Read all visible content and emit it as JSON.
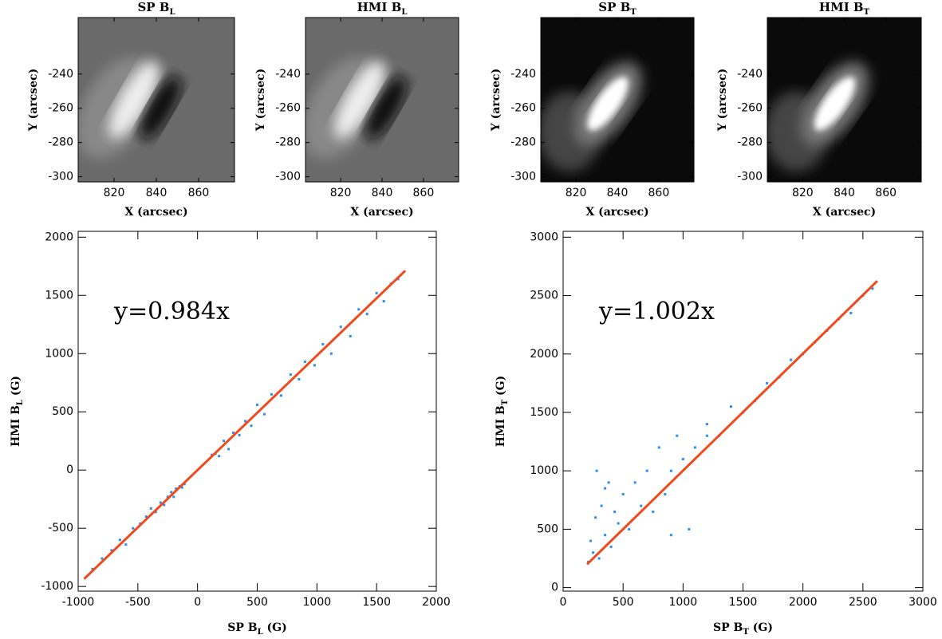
{
  "chart_data": [
    {
      "type": "image",
      "title": "SP B",
      "title_sub": "L",
      "xlabel": "X (arcsec)",
      "ylabel": "Y (arcsec)",
      "xlim": [
        803,
        877
      ],
      "ylim": [
        -303,
        -207
      ],
      "xticks": [
        820,
        840,
        860
      ],
      "yticks": [
        -240,
        -260,
        -280,
        -300
      ]
    },
    {
      "type": "image",
      "title": "HMI B",
      "title_sub": "L",
      "xlabel": "X (arcsec)",
      "ylabel": "Y (arcsec)",
      "xlim": [
        803,
        877
      ],
      "ylim": [
        -303,
        -207
      ],
      "xticks": [
        820,
        840,
        860
      ],
      "yticks": [
        -240,
        -260,
        -280,
        -300
      ]
    },
    {
      "type": "image",
      "title": "SP B",
      "title_sub": "T",
      "xlabel": "X (arcsec)",
      "ylabel": "Y (arcsec)",
      "xlim": [
        803,
        877
      ],
      "ylim": [
        -303,
        -207
      ],
      "xticks": [
        820,
        840,
        860
      ],
      "yticks": [
        -240,
        -260,
        -280,
        -300
      ]
    },
    {
      "type": "image",
      "title": "HMI B",
      "title_sub": "T",
      "xlabel": "X (arcsec)",
      "ylabel": "Y (arcsec)",
      "xlim": [
        803,
        877
      ],
      "ylim": [
        -303,
        -207
      ],
      "xticks": [
        820,
        840,
        860
      ],
      "yticks": [
        -240,
        -260,
        -280,
        -300
      ]
    },
    {
      "type": "scatter",
      "xlabel": "SP B",
      "xlabel_sub": "L",
      "xlabel_unit": " (G)",
      "ylabel": "HMI B",
      "ylabel_sub": "L",
      "ylabel_unit": " (G)",
      "xlim": [
        -1000,
        2000
      ],
      "ylim": [
        -1040,
        2050
      ],
      "xticks": [
        -1000,
        -500,
        0,
        500,
        1000,
        1500,
        2000
      ],
      "yticks": [
        -1000,
        -500,
        0,
        500,
        1000,
        1500,
        2000
      ],
      "annotation": "y=0.984x",
      "points": {
        "color": "#2b8cf2",
        "x": [
          -880,
          -800,
          -720,
          -650,
          -600,
          -540,
          -480,
          -430,
          -390,
          -350,
          -310,
          -280,
          -250,
          -220,
          -200,
          -180,
          -150,
          -130,
          -110,
          120,
          150,
          180,
          220,
          260,
          300,
          350,
          400,
          450,
          500,
          560,
          620,
          700,
          780,
          850,
          900,
          980,
          1050,
          1120,
          1200,
          1280,
          1350,
          1420,
          1500,
          1560,
          1620,
          1680
        ],
        "y": [
          -850,
          -760,
          -690,
          -600,
          -640,
          -500,
          -460,
          -400,
          -330,
          -360,
          -280,
          -300,
          -230,
          -190,
          -230,
          -160,
          -140,
          -150,
          -120,
          130,
          140,
          120,
          250,
          180,
          320,
          300,
          420,
          380,
          560,
          480,
          650,
          640,
          820,
          780,
          930,
          900,
          1080,
          1000,
          1230,
          1150,
          1380,
          1340,
          1520,
          1450,
          1600,
          1640
        ]
      },
      "fit": {
        "color": "#f04a1c",
        "x": [
          -950,
          1740
        ],
        "y": [
          -935,
          1712
        ]
      }
    },
    {
      "type": "scatter",
      "xlabel": "SP B",
      "xlabel_sub": "T",
      "xlabel_unit": " (G)",
      "ylabel": "HMI B",
      "ylabel_sub": "T",
      "ylabel_unit": " (G)",
      "xlim": [
        0,
        3000
      ],
      "ylim": [
        -30,
        3050
      ],
      "xticks": [
        0,
        500,
        1000,
        1500,
        2000,
        2500,
        3000
      ],
      "yticks": [
        0,
        500,
        1000,
        1500,
        2000,
        2500,
        3000
      ],
      "annotation": "y=1.002x",
      "points": {
        "color": "#2b8cf2",
        "x": [
          210,
          230,
          250,
          270,
          300,
          320,
          350,
          380,
          400,
          430,
          460,
          500,
          550,
          600,
          650,
          700,
          750,
          800,
          850,
          900,
          950,
          1000,
          1100,
          1200,
          1300,
          1400,
          1500,
          1600,
          1700,
          1800,
          1900,
          2000,
          2100,
          2200,
          2300,
          2400,
          2500,
          2580,
          280,
          350,
          900,
          1050,
          1200
        ],
        "y": [
          220,
          400,
          300,
          600,
          250,
          700,
          450,
          900,
          350,
          650,
          550,
          800,
          500,
          900,
          700,
          1000,
          650,
          1200,
          800,
          1000,
          1300,
          1100,
          1200,
          1400,
          1300,
          1550,
          1500,
          1600,
          1750,
          1800,
          1950,
          2000,
          2100,
          2200,
          2300,
          2350,
          2500,
          2560,
          1000,
          850,
          450,
          500,
          1300
        ]
      },
      "fit": {
        "color": "#f04a1c",
        "x": [
          200,
          2620
        ],
        "y": [
          200,
          2625
        ]
      }
    }
  ]
}
